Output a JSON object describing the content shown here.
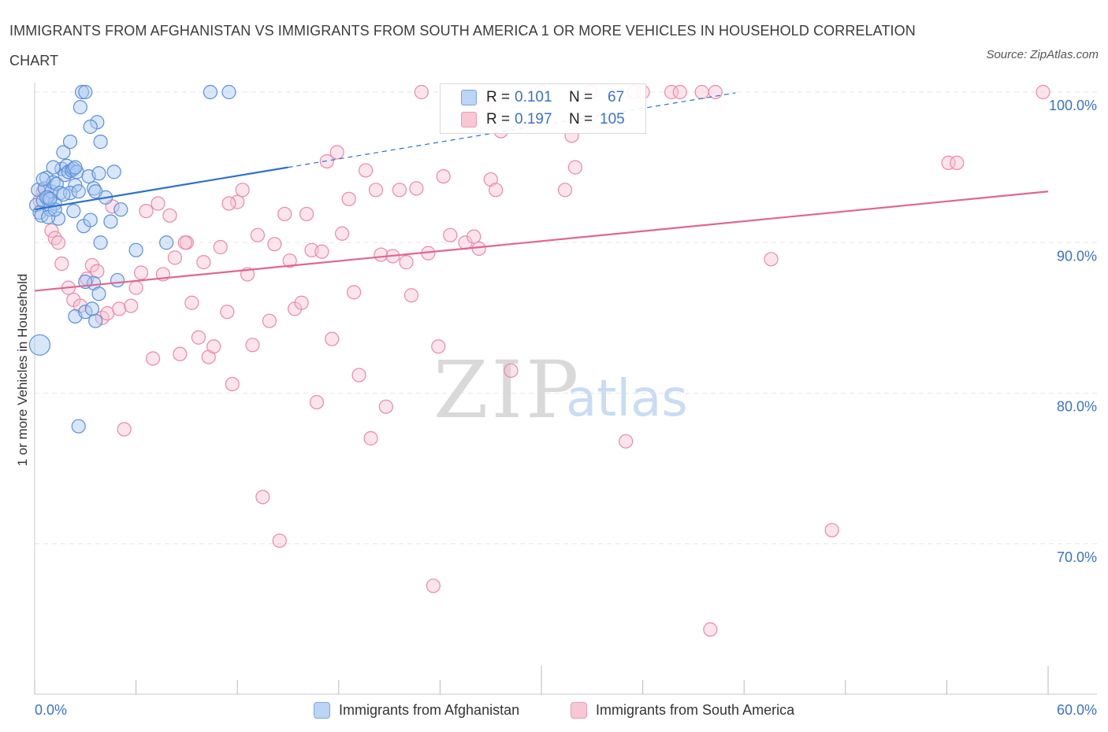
{
  "title": "IMMIGRANTS FROM AFGHANISTAN VS IMMIGRANTS FROM SOUTH AMERICA 1 OR MORE VEHICLES IN HOUSEHOLD CORRELATION CHART",
  "source": "Source: ZipAtlas.com",
  "watermark": {
    "zip": "ZIP",
    "atlas": "atlas"
  },
  "legend": {
    "rows": [
      {
        "r_label": "R =",
        "r_value": "0.101",
        "n_label": "N =",
        "n_value": "67",
        "color": "#a9c8f2"
      },
      {
        "r_label": "R =",
        "r_value": "0.197",
        "n_label": "N =",
        "n_value": "105",
        "color": "#f7b6c8"
      }
    ]
  },
  "colors": {
    "blue_fill": "#a9c8f2",
    "blue_stroke": "#5b8fd6",
    "blue_line": "#2f6fcf",
    "pink_fill": "#f7c4d3",
    "pink_stroke": "#e88aa7",
    "pink_line": "#e06690",
    "tick_label": "#3a72c9",
    "grid": "#e6e6e6"
  },
  "chart_data": {
    "type": "scatter",
    "title": "IMMIGRANTS FROM AFGHANISTAN VS IMMIGRANTS FROM SOUTH AMERICA 1 OR MORE VEHICLES IN HOUSEHOLD CORRELATION CHART",
    "xlabel": "",
    "ylabel": "1 or more Vehicles in Household",
    "xlim": [
      0,
      60
    ],
    "ylim": [
      60,
      100
    ],
    "x_tick_labels": [
      {
        "value": 0,
        "label": "0.0%"
      },
      {
        "value": 60,
        "label": "60.0%"
      }
    ],
    "y_tick_labels": [
      {
        "value": 100,
        "label": "100.0%"
      },
      {
        "value": 90,
        "label": "90.0%"
      },
      {
        "value": 80,
        "label": "80.0%"
      },
      {
        "value": 70,
        "label": "70.0%"
      }
    ],
    "grid": true,
    "legend_position": "bottom",
    "series": [
      {
        "name": "Immigrants from Afghanistan",
        "color": "#a9c8f2",
        "stats": {
          "R": 0.101,
          "N": 67
        },
        "trend": {
          "x": [
            0,
            15
          ],
          "y": [
            92.2,
            95.0
          ],
          "dashed_extension_to": [
            41.5,
            99.95
          ]
        },
        "points": [
          [
            0.3,
            83.2
          ],
          [
            0.1,
            92.5
          ],
          [
            0.2,
            93.5
          ],
          [
            0.3,
            92.0
          ],
          [
            0.4,
            91.8
          ],
          [
            0.5,
            92.8
          ],
          [
            0.6,
            93.6
          ],
          [
            0.7,
            94.3
          ],
          [
            0.8,
            93.0
          ],
          [
            0.9,
            92.2
          ],
          [
            1.0,
            93.4
          ],
          [
            1.1,
            94.0
          ],
          [
            1.2,
            92.6
          ],
          [
            1.3,
            93.9
          ],
          [
            1.4,
            91.6
          ],
          [
            1.5,
            93.3
          ],
          [
            1.6,
            94.9
          ],
          [
            1.7,
            96.0
          ],
          [
            1.8,
            94.5
          ],
          [
            1.9,
            95.1
          ],
          [
            2.0,
            94.7
          ],
          [
            2.1,
            96.7
          ],
          [
            2.2,
            94.8
          ],
          [
            2.3,
            94.9
          ],
          [
            2.4,
            93.8
          ],
          [
            2.5,
            94.7
          ],
          [
            0.8,
            91.7
          ],
          [
            1.2,
            92.2
          ],
          [
            2.1,
            93.3
          ],
          [
            2.6,
            93.4
          ],
          [
            2.7,
            99.0
          ],
          [
            2.8,
            100.0
          ],
          [
            3.0,
            100.0
          ],
          [
            2.9,
            91.1
          ],
          [
            3.2,
            94.4
          ],
          [
            3.3,
            91.5
          ],
          [
            3.5,
            93.6
          ],
          [
            3.6,
            93.4
          ],
          [
            3.7,
            98.0
          ],
          [
            3.8,
            94.6
          ],
          [
            3.9,
            90.0
          ],
          [
            4.2,
            93.0
          ],
          [
            4.5,
            91.4
          ],
          [
            4.7,
            94.7
          ],
          [
            5.1,
            92.2
          ],
          [
            4.9,
            87.5
          ],
          [
            3.5,
            87.3
          ],
          [
            3.8,
            86.6
          ],
          [
            2.4,
            85.1
          ],
          [
            3.0,
            85.4
          ],
          [
            3.6,
            84.8
          ],
          [
            6.0,
            89.5
          ],
          [
            7.8,
            90.0
          ],
          [
            10.4,
            100.0
          ],
          [
            11.5,
            100.0
          ],
          [
            2.6,
            77.8
          ],
          [
            3.4,
            85.6
          ],
          [
            3.3,
            97.7
          ],
          [
            2.4,
            95.0
          ],
          [
            3.9,
            96.7
          ],
          [
            3.0,
            87.4
          ],
          [
            2.3,
            92.1
          ],
          [
            1.1,
            95.0
          ],
          [
            1.7,
            93.2
          ],
          [
            0.7,
            93.0
          ],
          [
            0.5,
            94.2
          ],
          [
            0.9,
            92.9
          ]
        ]
      },
      {
        "name": "Immigrants from South America",
        "color": "#f7b6c8",
        "stats": {
          "R": 0.197,
          "N": 105
        },
        "trend": {
          "x": [
            0,
            60
          ],
          "y": [
            86.8,
            93.4
          ]
        },
        "points": [
          [
            0.3,
            92.8
          ],
          [
            0.5,
            93.4
          ],
          [
            0.8,
            93.0
          ],
          [
            1.0,
            90.8
          ],
          [
            1.2,
            90.3
          ],
          [
            1.4,
            90.0
          ],
          [
            1.6,
            88.6
          ],
          [
            2.0,
            87.0
          ],
          [
            2.3,
            86.2
          ],
          [
            2.7,
            85.8
          ],
          [
            3.1,
            87.6
          ],
          [
            3.4,
            88.5
          ],
          [
            3.7,
            88.1
          ],
          [
            4.0,
            85.0
          ],
          [
            4.3,
            85.3
          ],
          [
            4.6,
            92.4
          ],
          [
            5.0,
            85.6
          ],
          [
            5.3,
            77.6
          ],
          [
            5.7,
            85.8
          ],
          [
            6.0,
            87.0
          ],
          [
            6.3,
            88.0
          ],
          [
            6.6,
            92.1
          ],
          [
            7.0,
            82.3
          ],
          [
            7.3,
            92.6
          ],
          [
            7.6,
            87.9
          ],
          [
            8.0,
            91.8
          ],
          [
            8.3,
            89.0
          ],
          [
            8.6,
            82.6
          ],
          [
            9.0,
            90.0
          ],
          [
            9.3,
            86.0
          ],
          [
            9.7,
            83.7
          ],
          [
            10.0,
            88.7
          ],
          [
            10.3,
            82.4
          ],
          [
            10.6,
            83.1
          ],
          [
            11.0,
            89.7
          ],
          [
            11.4,
            85.4
          ],
          [
            11.7,
            80.6
          ],
          [
            12.0,
            92.7
          ],
          [
            12.3,
            93.5
          ],
          [
            12.6,
            87.9
          ],
          [
            12.9,
            83.2
          ],
          [
            13.2,
            90.5
          ],
          [
            13.5,
            73.1
          ],
          [
            13.9,
            84.8
          ],
          [
            14.2,
            89.9
          ],
          [
            14.5,
            70.2
          ],
          [
            14.8,
            91.9
          ],
          [
            15.1,
            88.8
          ],
          [
            15.4,
            85.6
          ],
          [
            15.8,
            86.0
          ],
          [
            16.1,
            91.9
          ],
          [
            16.4,
            89.5
          ],
          [
            16.7,
            79.4
          ],
          [
            17.0,
            89.4
          ],
          [
            17.3,
            95.4
          ],
          [
            17.6,
            83.6
          ],
          [
            17.9,
            96.0
          ],
          [
            18.2,
            90.6
          ],
          [
            18.6,
            92.9
          ],
          [
            18.9,
            86.7
          ],
          [
            19.2,
            81.2
          ],
          [
            19.6,
            94.8
          ],
          [
            19.9,
            77.0
          ],
          [
            20.2,
            93.5
          ],
          [
            20.5,
            89.2
          ],
          [
            20.8,
            79.1
          ],
          [
            21.2,
            89.1
          ],
          [
            21.6,
            93.5
          ],
          [
            22.0,
            88.7
          ],
          [
            22.3,
            86.5
          ],
          [
            22.6,
            93.6
          ],
          [
            22.9,
            100.0
          ],
          [
            23.3,
            89.3
          ],
          [
            23.6,
            67.2
          ],
          [
            23.9,
            83.1
          ],
          [
            24.2,
            94.4
          ],
          [
            24.6,
            90.5
          ],
          [
            25.5,
            90.0
          ],
          [
            26.0,
            90.4
          ],
          [
            26.3,
            89.6
          ],
          [
            26.6,
            99.0
          ],
          [
            27.0,
            94.2
          ],
          [
            27.3,
            93.5
          ],
          [
            27.6,
            97.4
          ],
          [
            28.2,
            81.5
          ],
          [
            30.0,
            100.0
          ],
          [
            31.4,
            93.5
          ],
          [
            31.8,
            97.1
          ],
          [
            32.0,
            95.0
          ],
          [
            32.9,
            100.0
          ],
          [
            35.0,
            76.8
          ],
          [
            35.5,
            100.0
          ],
          [
            36.0,
            100.0
          ],
          [
            37.7,
            100.0
          ],
          [
            38.2,
            100.0
          ],
          [
            39.5,
            100.0
          ],
          [
            40.0,
            64.3
          ],
          [
            40.3,
            100.0
          ],
          [
            43.6,
            88.9
          ],
          [
            47.2,
            70.9
          ],
          [
            54.1,
            95.3
          ],
          [
            54.6,
            95.3
          ],
          [
            59.7,
            100.0
          ],
          [
            8.9,
            90.0
          ],
          [
            11.5,
            92.6
          ]
        ]
      }
    ]
  }
}
